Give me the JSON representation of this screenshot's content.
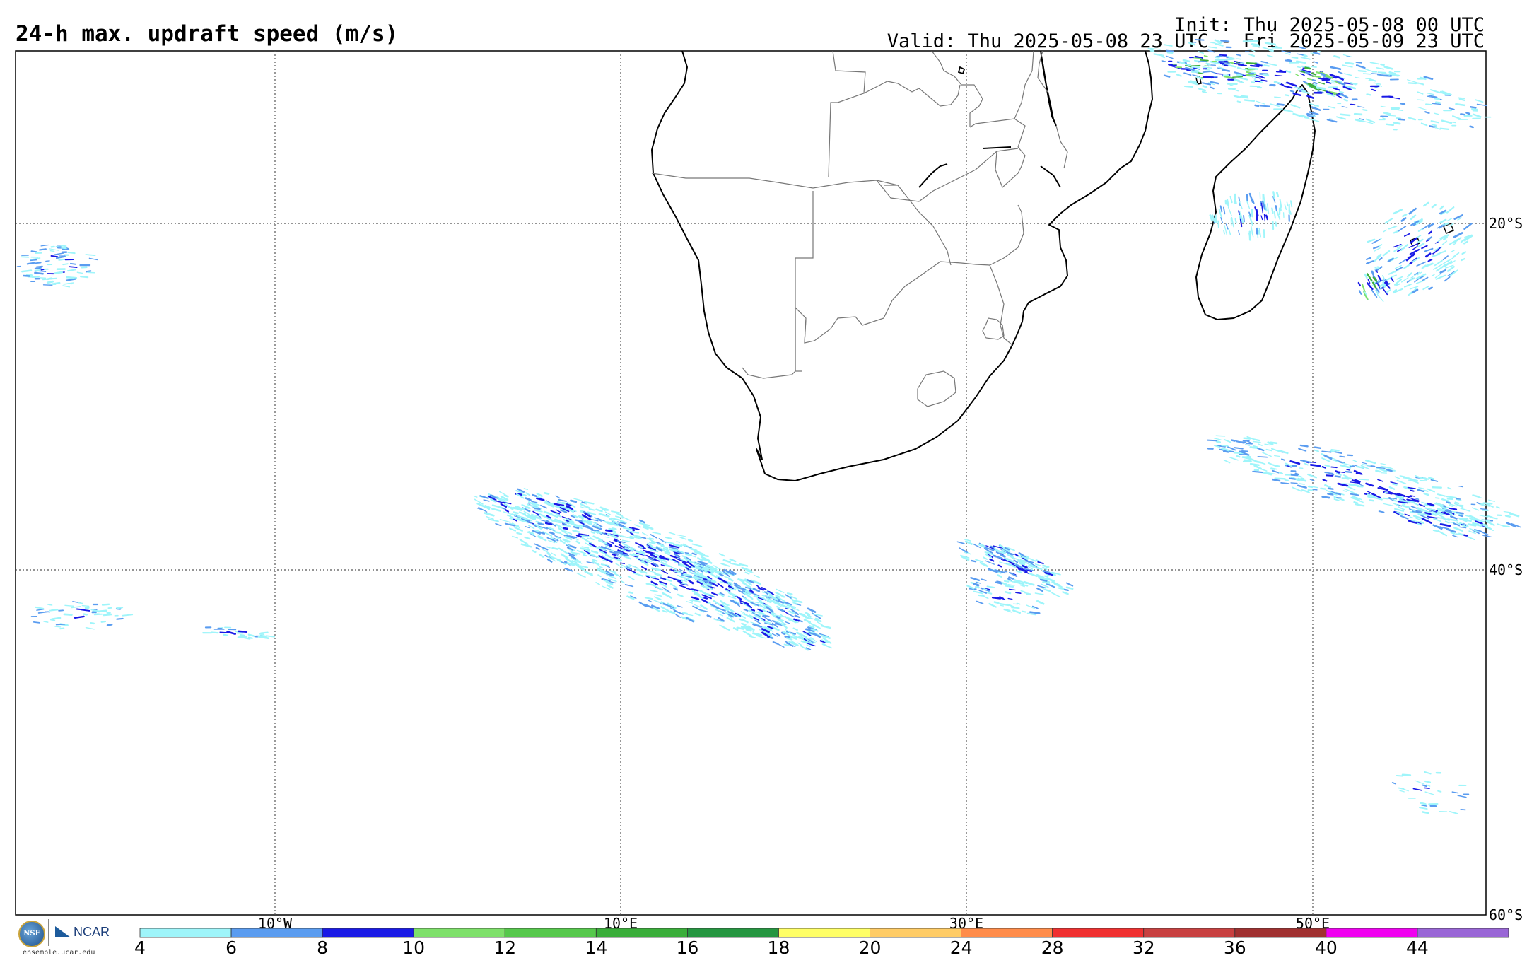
{
  "title": "24-h max. updraft speed (m/s)",
  "init": "Init: Thu 2025-05-08 00 UTC",
  "valid": "Valid: Thu 2025-05-08 23 UTC - Fri 2025-05-09 23 UTC",
  "lat_labels": [
    "20°S",
    "40°S",
    "60°S"
  ],
  "lon_labels": [
    "10°W",
    "10°E",
    "30°E",
    "50°E"
  ],
  "colorbar": {
    "ticks": [
      "4",
      "6",
      "8",
      "10",
      "12",
      "14",
      "16",
      "18",
      "20",
      "24",
      "28",
      "32",
      "36",
      "40",
      "44"
    ],
    "colors": [
      "#9ff5fa",
      "#5a9cf0",
      "#1a1ae6",
      "#7ee06a",
      "#56c84c",
      "#3aae3a",
      "#259640",
      "#ffff66",
      "#ffcc66",
      "#ff8c4a",
      "#f03030",
      "#c84040",
      "#a03030",
      "#f000f0",
      "#9966d6"
    ]
  },
  "logos": {
    "nsf": "NSF",
    "ncar": "NCAR",
    "url": "ensemble.ucar.edu"
  }
}
